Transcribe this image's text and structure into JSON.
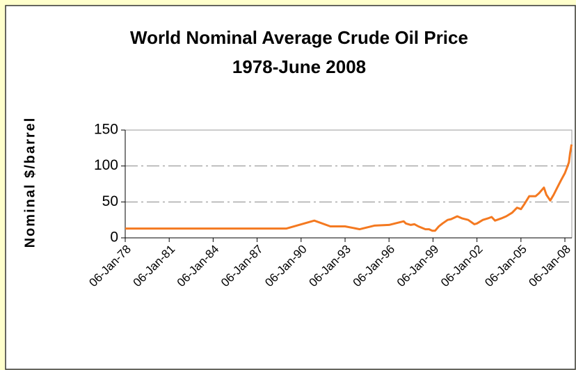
{
  "chart_data": {
    "type": "line",
    "title": "World Nominal Average Crude Oil Price",
    "subtitle": "1978-June 2008",
    "y_label": "Nominal $/barrel",
    "x": [
      "1978-01-06",
      "1989-01-06",
      "1990-12-01",
      "1992-01-06",
      "1993-01-06",
      "1994-01-06",
      "1995-01-06",
      "1996-01-06",
      "1997-01-06",
      "1997-03-01",
      "1997-07-01",
      "1997-10-01",
      "1998-01-06",
      "1998-04-01",
      "1998-07-01",
      "1998-10-01",
      "1998-12-15",
      "1999-03-01",
      "1999-06-01",
      "1999-09-01",
      "2000-01-06",
      "2000-04-01",
      "2000-09-01",
      "2001-01-06",
      "2001-06-01",
      "2001-11-01",
      "2002-01-06",
      "2002-06-01",
      "2002-10-01",
      "2003-01-06",
      "2003-04-01",
      "2003-09-01",
      "2004-01-06",
      "2004-06-01",
      "2004-10-01",
      "2005-01-06",
      "2005-04-01",
      "2005-08-01",
      "2006-01-06",
      "2006-04-01",
      "2006-08-01",
      "2006-10-01",
      "2007-01-06",
      "2007-04-01",
      "2007-07-01",
      "2007-10-01",
      "2008-01-06",
      "2008-03-01",
      "2008-04-15",
      "2008-05-15",
      "2008-06-20"
    ],
    "series": [
      {
        "name": "Crude oil price",
        "color": "#f47920",
        "values": [
          13,
          13,
          24,
          16,
          16,
          12,
          17,
          18,
          23,
          20,
          18,
          19,
          16,
          14,
          12,
          12,
          10,
          10,
          16,
          20,
          25,
          26,
          30,
          27,
          25,
          19,
          20,
          25,
          27,
          29,
          24,
          27,
          30,
          35,
          42,
          40,
          47,
          58,
          58,
          62,
          70,
          60,
          52,
          60,
          70,
          80,
          90,
          98,
          105,
          118,
          130
        ]
      }
    ],
    "xlim": [
      "1978-01-06",
      "2008-06-27"
    ],
    "xticks": [
      {
        "value": "1978-01-06",
        "label": "06-Jan-78"
      },
      {
        "value": "1981-01-06",
        "label": "06-Jan-81"
      },
      {
        "value": "1984-01-06",
        "label": "06-Jan-84"
      },
      {
        "value": "1987-01-06",
        "label": "06-Jan-87"
      },
      {
        "value": "1990-01-06",
        "label": "06-Jan-90"
      },
      {
        "value": "1993-01-06",
        "label": "06-Jan-93"
      },
      {
        "value": "1996-01-06",
        "label": "06-Jan-96"
      },
      {
        "value": "1999-01-06",
        "label": "06-Jan-99"
      },
      {
        "value": "2002-01-06",
        "label": "06-Jan-02"
      },
      {
        "value": "2005-01-06",
        "label": "06-Jan-05"
      },
      {
        "value": "2008-01-06",
        "label": "06-Jan-08"
      }
    ],
    "ylim": [
      0,
      150
    ],
    "yticks": [
      0,
      50,
      100,
      150
    ],
    "grid": true
  }
}
